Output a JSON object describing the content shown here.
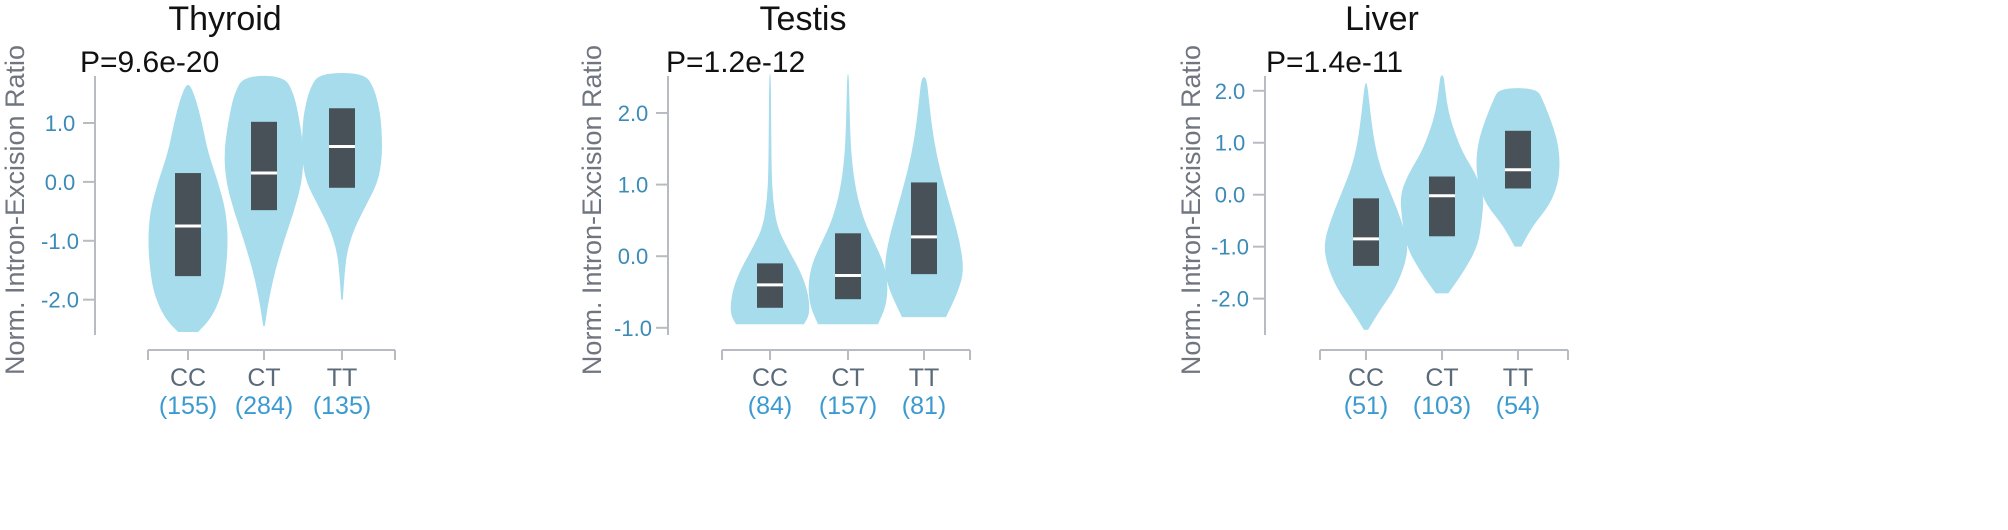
{
  "chart_data": [
    {
      "type": "violin",
      "title": "Thyroid",
      "pvalue_label": "P=9.6e-20",
      "ylabel": "Norm. Intron-Excision Ratio",
      "yticks": [
        "1.0",
        "0.0",
        "-1.0",
        "-2.0"
      ],
      "ytick_values": [
        1.0,
        0.0,
        -1.0,
        -2.0
      ],
      "ylim": [
        -2.6,
        1.9
      ],
      "categories": [
        "CC",
        "CT",
        "TT"
      ],
      "counts": [
        "(155)",
        "(284)",
        "(135)"
      ],
      "series": [
        {
          "category": "CC",
          "min": -2.55,
          "max": 1.65,
          "q1": -1.6,
          "median": -0.75,
          "q3": 0.15,
          "density": [
            [
              -2.55,
              0.25
            ],
            [
              -2.3,
              0.6
            ],
            [
              -1.9,
              0.85
            ],
            [
              -1.5,
              0.95
            ],
            [
              -1.0,
              1.0
            ],
            [
              -0.5,
              0.95
            ],
            [
              0.0,
              0.75
            ],
            [
              0.5,
              0.5
            ],
            [
              1.0,
              0.35
            ],
            [
              1.4,
              0.2
            ],
            [
              1.65,
              0.05
            ]
          ]
        },
        {
          "category": "CT",
          "min": -2.45,
          "max": 1.8,
          "q1": -0.48,
          "median": 0.15,
          "q3": 1.02,
          "density": [
            [
              -2.45,
              0.02
            ],
            [
              -2.0,
              0.12
            ],
            [
              -1.5,
              0.28
            ],
            [
              -1.0,
              0.5
            ],
            [
              -0.5,
              0.75
            ],
            [
              0.0,
              0.95
            ],
            [
              0.5,
              1.0
            ],
            [
              1.0,
              0.9
            ],
            [
              1.5,
              0.75
            ],
            [
              1.8,
              0.5
            ]
          ]
        },
        {
          "category": "TT",
          "min": -2.0,
          "max": 1.85,
          "q1": -0.1,
          "median": 0.6,
          "q3": 1.25,
          "density": [
            [
              -2.0,
              0.02
            ],
            [
              -1.6,
              0.06
            ],
            [
              -1.2,
              0.12
            ],
            [
              -0.8,
              0.3
            ],
            [
              -0.4,
              0.6
            ],
            [
              0.0,
              0.9
            ],
            [
              0.4,
              1.0
            ],
            [
              0.8,
              1.0
            ],
            [
              1.2,
              0.95
            ],
            [
              1.6,
              0.8
            ],
            [
              1.85,
              0.55
            ]
          ]
        }
      ],
      "color": "#a6dcec",
      "box_color": "#485058",
      "median_color": "#ffffff"
    },
    {
      "type": "violin",
      "title": "Testis",
      "pvalue_label": "P=1.2e-12",
      "ylabel": "Norm. Intron-Excision Ratio",
      "yticks": [
        "2.0",
        "1.0",
        "0.0",
        "-1.0"
      ],
      "ytick_values": [
        2.0,
        1.0,
        0.0,
        -1.0
      ],
      "ylim": [
        -1.1,
        2.6
      ],
      "categories": [
        "CC",
        "CT",
        "TT"
      ],
      "counts": [
        "(84)",
        "(157)",
        "(81)"
      ],
      "series": [
        {
          "category": "CC",
          "min": -0.95,
          "max": 2.55,
          "q1": -0.72,
          "median": -0.4,
          "q3": -0.1,
          "density": [
            [
              -0.95,
              0.85
            ],
            [
              -0.8,
              1.0
            ],
            [
              -0.5,
              0.95
            ],
            [
              -0.2,
              0.75
            ],
            [
              0.1,
              0.45
            ],
            [
              0.4,
              0.18
            ],
            [
              0.8,
              0.07
            ],
            [
              1.2,
              0.04
            ],
            [
              1.8,
              0.03
            ],
            [
              2.55,
              0.02
            ]
          ]
        },
        {
          "category": "CT",
          "min": -0.95,
          "max": 2.55,
          "q1": -0.6,
          "median": -0.27,
          "q3": 0.32,
          "density": [
            [
              -0.95,
              0.75
            ],
            [
              -0.7,
              0.95
            ],
            [
              -0.4,
              1.0
            ],
            [
              -0.1,
              0.9
            ],
            [
              0.2,
              0.65
            ],
            [
              0.5,
              0.4
            ],
            [
              0.9,
              0.2
            ],
            [
              1.4,
              0.08
            ],
            [
              2.0,
              0.04
            ],
            [
              2.55,
              0.02
            ]
          ]
        },
        {
          "category": "TT",
          "min": -0.85,
          "max": 2.5,
          "q1": -0.25,
          "median": 0.27,
          "q3": 1.03,
          "density": [
            [
              -0.85,
              0.55
            ],
            [
              -0.5,
              0.85
            ],
            [
              -0.2,
              1.0
            ],
            [
              0.2,
              0.9
            ],
            [
              0.6,
              0.7
            ],
            [
              1.0,
              0.5
            ],
            [
              1.4,
              0.32
            ],
            [
              1.8,
              0.2
            ],
            [
              2.2,
              0.12
            ],
            [
              2.5,
              0.06
            ]
          ]
        }
      ],
      "color": "#a6dcec",
      "box_color": "#485058",
      "median_color": "#ffffff"
    },
    {
      "type": "violin",
      "title": "Liver",
      "pvalue_label": "P=1.4e-11",
      "ylabel": "Norm. Intron-Excision Ratio",
      "yticks": [
        "2.0",
        "1.0",
        "0.0",
        "-1.0",
        "-2.0"
      ],
      "ytick_values": [
        2.0,
        1.0,
        0.0,
        -1.0,
        -2.0
      ],
      "ylim": [
        -2.7,
        2.4
      ],
      "categories": [
        "CC",
        "CT",
        "TT"
      ],
      "counts": [
        "(51)",
        "(103)",
        "(54)"
      ],
      "series": [
        {
          "category": "CC",
          "min": -2.6,
          "max": 2.15,
          "q1": -1.37,
          "median": -0.85,
          "q3": -0.07,
          "density": [
            [
              -2.6,
              0.05
            ],
            [
              -2.2,
              0.35
            ],
            [
              -1.8,
              0.7
            ],
            [
              -1.3,
              0.95
            ],
            [
              -0.9,
              1.0
            ],
            [
              -0.4,
              0.8
            ],
            [
              0.0,
              0.6
            ],
            [
              0.5,
              0.35
            ],
            [
              1.0,
              0.2
            ],
            [
              1.6,
              0.1
            ],
            [
              2.15,
              0.03
            ]
          ]
        },
        {
          "category": "CT",
          "min": -1.9,
          "max": 2.3,
          "q1": -0.8,
          "median": -0.02,
          "q3": 0.35,
          "density": [
            [
              -1.9,
              0.15
            ],
            [
              -1.5,
              0.5
            ],
            [
              -1.0,
              0.85
            ],
            [
              -0.5,
              0.95
            ],
            [
              0.0,
              1.0
            ],
            [
              0.4,
              0.8
            ],
            [
              0.8,
              0.5
            ],
            [
              1.2,
              0.3
            ],
            [
              1.6,
              0.15
            ],
            [
              2.0,
              0.08
            ],
            [
              2.3,
              0.04
            ]
          ]
        },
        {
          "category": "TT",
          "min": -1.0,
          "max": 2.05,
          "q1": 0.12,
          "median": 0.48,
          "q3": 1.23,
          "density": [
            [
              -1.0,
              0.08
            ],
            [
              -0.6,
              0.35
            ],
            [
              -0.2,
              0.75
            ],
            [
              0.2,
              0.95
            ],
            [
              0.6,
              1.0
            ],
            [
              1.0,
              0.95
            ],
            [
              1.4,
              0.8
            ],
            [
              1.8,
              0.6
            ],
            [
              2.05,
              0.45
            ]
          ]
        }
      ],
      "color": "#a6dcec",
      "box_color": "#485058",
      "median_color": "#ffffff"
    }
  ]
}
